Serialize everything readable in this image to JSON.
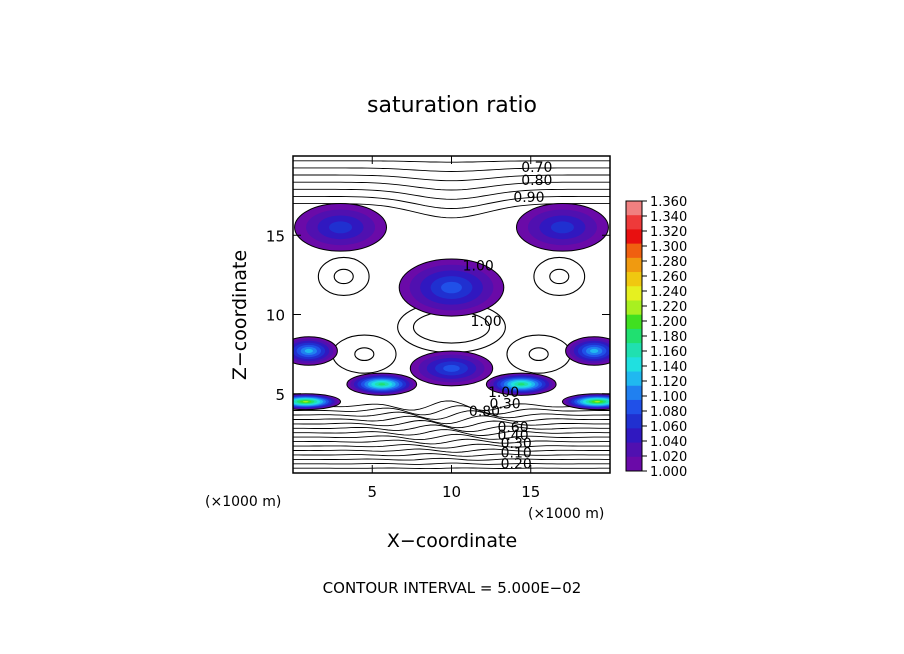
{
  "chart_data": {
    "type": "heatmap",
    "title": "saturation ratio",
    "xlabel": "X−coordinate",
    "ylabel": "Z−coordinate",
    "x_unit": "(×1000 m)",
    "z_unit": "(×1000 m)",
    "xlim": [
      0,
      20
    ],
    "ylim": [
      0,
      20
    ],
    "x_ticks": [
      5,
      10,
      15
    ],
    "y_ticks": [
      5,
      10,
      15
    ],
    "colorbar": {
      "min": 1.0,
      "max": 1.36,
      "tick_labels": [
        "1.360",
        "1.340",
        "1.320",
        "1.300",
        "1.280",
        "1.260",
        "1.240",
        "1.220",
        "1.200",
        "1.180",
        "1.160",
        "1.140",
        "1.120",
        "1.100",
        "1.080",
        "1.060",
        "1.040",
        "1.020",
        "1.000"
      ],
      "colors": [
        "#f08080",
        "#ee3a3a",
        "#e81010",
        "#f06010",
        "#f09a10",
        "#f0c810",
        "#e6f020",
        "#a8f020",
        "#40e020",
        "#20e070",
        "#20e0b0",
        "#20e0e0",
        "#20b8f0",
        "#2080f0",
        "#2050e8",
        "#2030d0",
        "#3018c0",
        "#5010b0",
        "#6a0aa8"
      ]
    },
    "contour_labels": [
      {
        "text": "0.70",
        "x": 14.4,
        "z": 19.3
      },
      {
        "text": "0.80",
        "x": 14.4,
        "z": 18.5
      },
      {
        "text": "0.90",
        "x": 13.9,
        "z": 17.4
      },
      {
        "text": "1.00",
        "x": 10.7,
        "z": 13.1
      },
      {
        "text": "1.00",
        "x": 11.2,
        "z": 9.6
      },
      {
        "text": "1.00",
        "x": 12.3,
        "z": 5.1
      },
      {
        "text": "0.30",
        "x": 12.4,
        "z": 4.4
      },
      {
        "text": "0.80",
        "x": 11.1,
        "z": 3.9
      },
      {
        "text": "0.60",
        "x": 12.9,
        "z": 2.9
      },
      {
        "text": "0.40",
        "x": 12.9,
        "z": 2.4
      },
      {
        "text": "0.30",
        "x": 13.1,
        "z": 1.9
      },
      {
        "text": "0.10",
        "x": 13.1,
        "z": 1.3
      },
      {
        "text": "0.20",
        "x": 13.1,
        "z": 0.6
      }
    ],
    "supersaturated_regions": [
      {
        "x": 3.0,
        "z": 15.5,
        "rx": 2.9,
        "rz": 1.5,
        "peak": 1.06
      },
      {
        "x": 17.0,
        "z": 15.5,
        "rx": 2.9,
        "rz": 1.5,
        "peak": 1.06
      },
      {
        "x": 10.0,
        "z": 11.7,
        "rx": 3.3,
        "rz": 1.8,
        "peak": 1.08
      },
      {
        "x": 1.0,
        "z": 7.7,
        "rx": 1.8,
        "rz": 0.9,
        "peak": 1.12
      },
      {
        "x": 19.0,
        "z": 7.7,
        "rx": 1.8,
        "rz": 0.9,
        "peak": 1.12
      },
      {
        "x": 5.6,
        "z": 5.6,
        "rx": 2.2,
        "rz": 0.7,
        "peak": 1.18
      },
      {
        "x": 14.4,
        "z": 5.6,
        "rx": 2.2,
        "rz": 0.7,
        "peak": 1.18
      },
      {
        "x": 10.0,
        "z": 6.6,
        "rx": 2.6,
        "rz": 1.1,
        "peak": 1.07
      },
      {
        "x": 0.8,
        "z": 4.5,
        "rx": 2.2,
        "rz": 0.5,
        "peak": 1.22
      },
      {
        "x": 19.2,
        "z": 4.5,
        "rx": 2.2,
        "rz": 0.5,
        "peak": 1.22
      }
    ],
    "grid": false
  },
  "footer": {
    "contour_interval": "CONTOUR INTERVAL = 5.000E−02"
  }
}
